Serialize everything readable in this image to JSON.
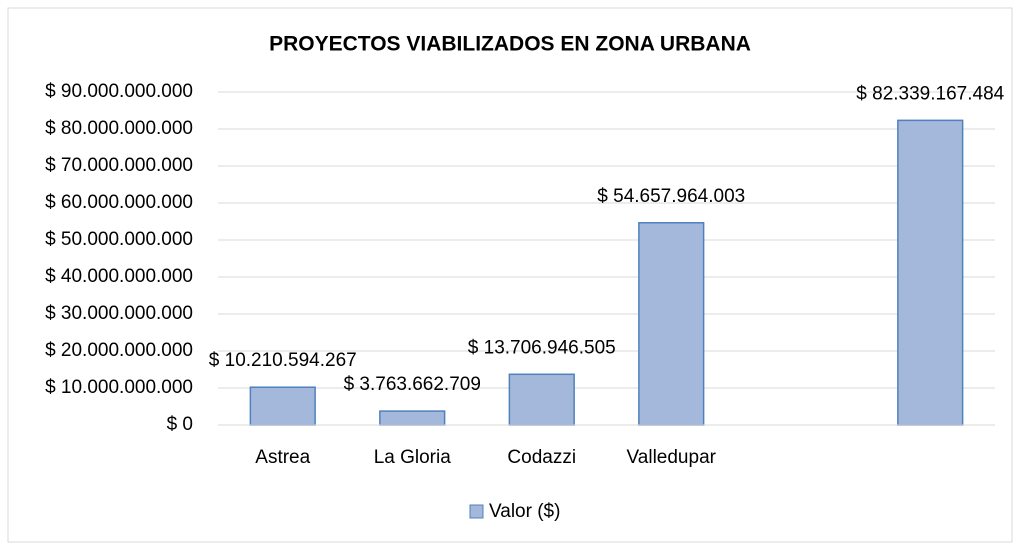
{
  "chart_data": {
    "type": "bar",
    "title": "PROYECTOS VIABILIZADOS EN ZONA URBANA",
    "categories": [
      "Astrea",
      "La Gloria",
      "Codazzi",
      "Valledupar",
      null,
      null
    ],
    "series": [
      {
        "name": "Valor ($)",
        "color": "#a3b8da",
        "values": [
          10210594267,
          3763662709,
          13706946505,
          54657964003,
          null,
          82339167484
        ],
        "value_labels": [
          "$ 10.210.594.267",
          "$ 3.763.662.709",
          "$ 13.706.946.505",
          "$ 54.657.964.003",
          null,
          "$ 82.339.167.484"
        ]
      }
    ],
    "ylim": [
      0,
      90000000000
    ],
    "yticks": [
      {
        "value": 0,
        "label": "$ 0"
      },
      {
        "value": 10000000000,
        "label": "$ 10.000.000.000"
      },
      {
        "value": 20000000000,
        "label": "$ 20.000.000.000"
      },
      {
        "value": 30000000000,
        "label": "$ 30.000.000.000"
      },
      {
        "value": 40000000000,
        "label": "$ 40.000.000.000"
      },
      {
        "value": 50000000000,
        "label": "$ 50.000.000.000"
      },
      {
        "value": 60000000000,
        "label": "$ 60.000.000.000"
      },
      {
        "value": 70000000000,
        "label": "$ 70.000.000.000"
      },
      {
        "value": 80000000000,
        "label": "$ 80.000.000.000"
      },
      {
        "value": 90000000000,
        "label": "$ 90.000.000.000"
      }
    ],
    "grid": true,
    "legend": "bottom"
  }
}
